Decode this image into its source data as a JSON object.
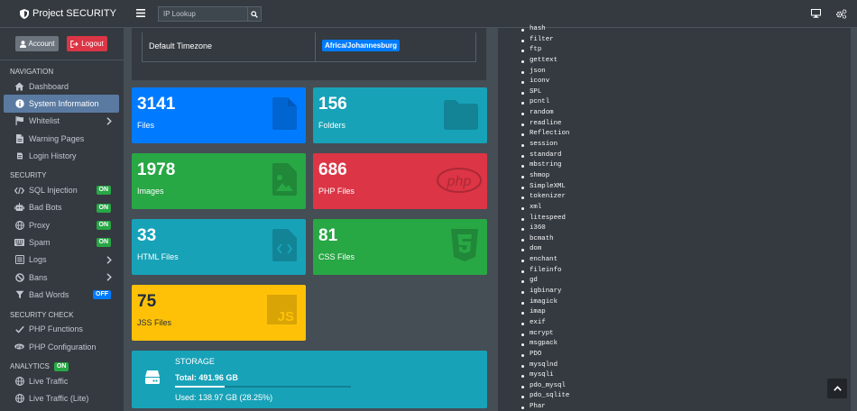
{
  "brand": {
    "title": "Project SECURITY"
  },
  "header": {
    "search_placeholder": "IP Lookup"
  },
  "user": {
    "account_label": "Account",
    "logout_label": "Logout"
  },
  "sections": {
    "navigation": "NAVIGATION",
    "security": "SECURITY",
    "security_check": "SECURITY CHECK",
    "analytics": "ANALYTICS",
    "analytics_badge": "ON"
  },
  "nav": [
    {
      "label": "Dashboard",
      "icon": "home-icon"
    },
    {
      "label": "System Information",
      "icon": "info-circle-icon",
      "active": true
    },
    {
      "label": "Whitelist",
      "icon": "flag-icon",
      "chevron": true
    },
    {
      "label": "Warning Pages",
      "icon": "file-icon"
    },
    {
      "label": "Login History",
      "icon": "history-icon"
    }
  ],
  "security": [
    {
      "label": "SQL Injection",
      "icon": "code-icon",
      "badge": "ON"
    },
    {
      "label": "Bad Bots",
      "icon": "robot-icon",
      "badge": "ON"
    },
    {
      "label": "Proxy",
      "icon": "globe-icon",
      "badge": "ON"
    },
    {
      "label": "Spam",
      "icon": "keyboard-icon",
      "badge": "ON"
    },
    {
      "label": "Logs",
      "icon": "list-icon",
      "chevron": true
    },
    {
      "label": "Bans",
      "icon": "ban-icon",
      "chevron": true
    },
    {
      "label": "Bad Words",
      "icon": "filter-icon",
      "badge": "OFF"
    }
  ],
  "security_check": [
    {
      "label": "PHP Functions",
      "icon": "check-icon"
    },
    {
      "label": "PHP Configuration",
      "icon": "php-icon"
    }
  ],
  "analytics": [
    {
      "label": "Live Traffic",
      "icon": "globe-icon"
    },
    {
      "label": "Live Traffic (Lite)",
      "icon": "globe-icon"
    }
  ],
  "timezone": {
    "label": "Default Timezone",
    "value": "Africa/Johannesburg"
  },
  "stats": [
    {
      "value": "3141",
      "label": "Files",
      "icon": "file-icon"
    },
    {
      "value": "156",
      "label": "Folders",
      "icon": "folder-icon"
    },
    {
      "value": "1978",
      "label": "Images",
      "icon": "image-file-icon"
    },
    {
      "value": "686",
      "label": "PHP Files",
      "icon": "php-icon"
    },
    {
      "value": "33",
      "label": "HTML Files",
      "icon": "code-file-icon"
    },
    {
      "value": "81",
      "label": "CSS Files",
      "icon": "css3-icon"
    },
    {
      "value": "75",
      "label": "JSS Files",
      "icon": "js-icon"
    }
  ],
  "storage": {
    "title": "STORAGE",
    "total": "Total: 491.96 GB",
    "used": "Used: 138.97 GB (28.25%)",
    "used_fraction": 0.2825
  },
  "extensions": [
    "hash",
    "filter",
    "ftp",
    "gettext",
    "json",
    "iconv",
    "SPL",
    "pcntl",
    "random",
    "readline",
    "Reflection",
    "session",
    "standard",
    "mbstring",
    "shmop",
    "SimpleXML",
    "tokenizer",
    "xml",
    "litespeed",
    "i360",
    "bcmath",
    "dom",
    "enchant",
    "fileinfo",
    "gd",
    "igbinary",
    "imagick",
    "imap",
    "exif",
    "mcrypt",
    "msgpack",
    "PDO",
    "mysqlnd",
    "mysqli",
    "pdo_mysql",
    "pdo_sqlite",
    "Phar"
  ]
}
